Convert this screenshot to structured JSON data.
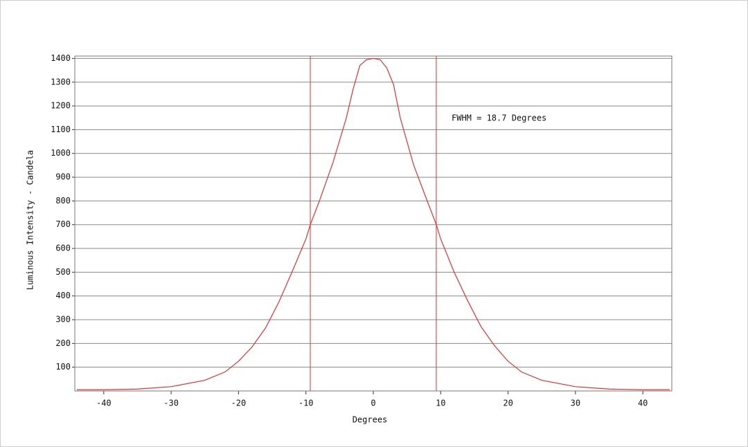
{
  "chart_data": {
    "type": "line",
    "x_label": "Degrees",
    "y_label": "Luminous Intensity - Candela",
    "annotation": "FWHM = 18.7 Degrees",
    "x": [
      -44,
      -40,
      -35,
      -30,
      -25,
      -22,
      -20,
      -18,
      -16,
      -14,
      -12,
      -10,
      -9.35,
      -8,
      -6,
      -4,
      -3,
      -2,
      -1,
      0,
      1,
      2,
      3,
      4,
      6,
      8,
      9.35,
      10,
      12,
      14,
      16,
      18,
      20,
      22,
      25,
      30,
      35,
      40,
      44
    ],
    "series": [
      {
        "name": "Luminous Intensity",
        "color": "#e03030",
        "values": [
          5,
          5,
          8,
          18,
          45,
          80,
          125,
          185,
          265,
          375,
          505,
          640,
          700,
          800,
          960,
          1150,
          1270,
          1370,
          1395,
          1400,
          1395,
          1360,
          1290,
          1150,
          950,
          800,
          700,
          640,
          500,
          380,
          270,
          190,
          125,
          80,
          45,
          18,
          8,
          5,
          5
        ]
      }
    ],
    "fwhm_lines": [
      -9.35,
      9.35
    ],
    "xlim": [
      -44.3,
      44.3
    ],
    "ylim": [
      0,
      1410
    ],
    "xticks": [
      -40,
      -30,
      -20,
      -10,
      0,
      10,
      20,
      30,
      40
    ],
    "yticks": [
      100,
      200,
      300,
      400,
      500,
      600,
      700,
      800,
      900,
      1000,
      1100,
      1200,
      1300,
      1400
    ],
    "grid": true
  }
}
